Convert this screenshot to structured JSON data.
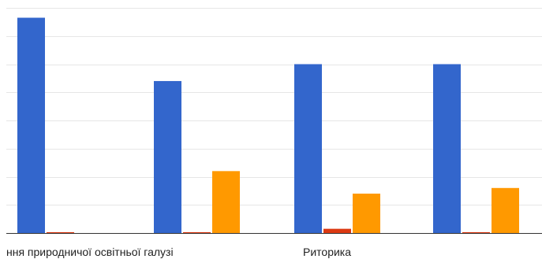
{
  "chart_data": {
    "type": "bar",
    "title": "",
    "xlabel": "",
    "ylabel": "",
    "grid": true,
    "legend": "none",
    "ylim": [
      0,
      8
    ],
    "categories": [
      "ння природничої освітньої галузі",
      "",
      "Риторика",
      ""
    ],
    "series": [
      {
        "color": "#3366cc",
        "values": [
          7.65,
          5.4,
          6.0,
          6.0
        ]
      },
      {
        "color": "#dc3912",
        "values": [
          0.03,
          0.03,
          0.15,
          0.03
        ]
      },
      {
        "color": "#ff9900",
        "values": [
          0.0,
          2.2,
          1.4,
          1.6
        ]
      }
    ]
  },
  "colors": {
    "grid": "#e6e6e6",
    "baseline": "#333333"
  }
}
